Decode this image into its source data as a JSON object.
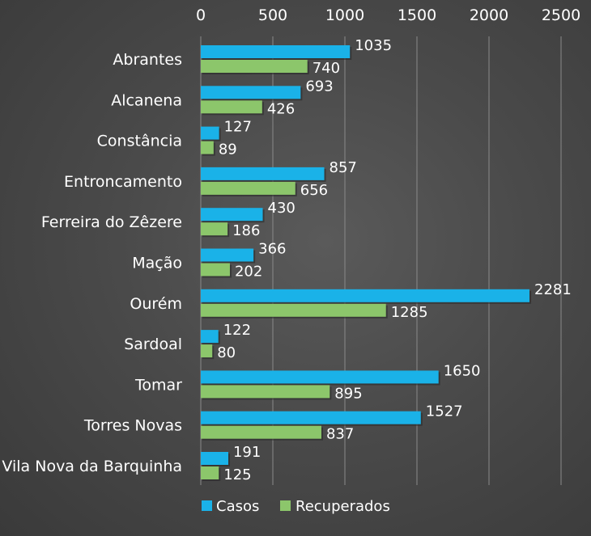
{
  "chart_data": {
    "type": "bar",
    "orientation": "horizontal",
    "categories": [
      "Abrantes",
      "Alcanena",
      "Constância",
      "Entroncamento",
      "Ferreira do Zêzere",
      "Mação",
      "Ourém",
      "Sardoal",
      "Tomar",
      "Torres Novas",
      "Vila Nova da Barquinha"
    ],
    "series": [
      {
        "name": "Casos",
        "color": "#1ab2e8",
        "values": [
          1035,
          693,
          127,
          857,
          430,
          366,
          2281,
          122,
          1650,
          1527,
          191
        ]
      },
      {
        "name": "Recuperados",
        "color": "#8cc66b",
        "values": [
          740,
          426,
          89,
          656,
          186,
          202,
          1285,
          80,
          895,
          837,
          125
        ]
      }
    ],
    "xlim": [
      0,
      2500
    ],
    "xticks": [
      0,
      500,
      1000,
      1500,
      2000,
      2500
    ],
    "xaxis_position": "top",
    "grid": true,
    "legend": "bottom-left",
    "background": "#474747",
    "gridline_color": "#8a8a8a"
  }
}
